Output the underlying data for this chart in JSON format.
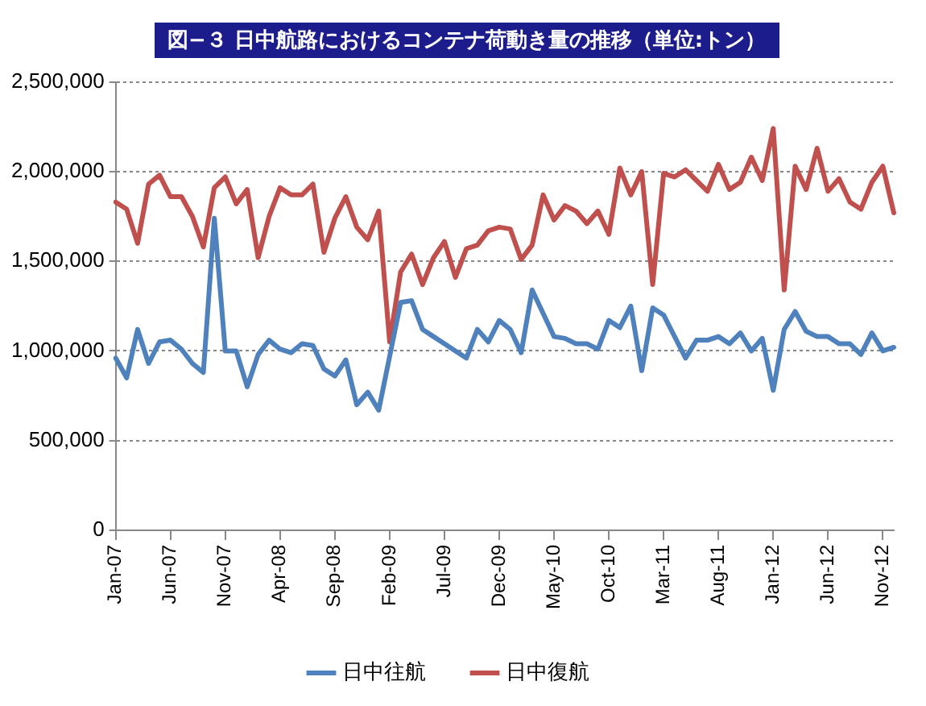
{
  "chart_data": {
    "type": "line",
    "title": "図−３ 日中航路におけるコンテナ荷動き量の推移（単位:トン）",
    "categories": [
      "Jan-07",
      null,
      null,
      null,
      null,
      "Jun-07",
      null,
      null,
      null,
      null,
      "Nov-07",
      null,
      null,
      null,
      null,
      "Apr-08",
      null,
      null,
      null,
      null,
      "Sep-08",
      null,
      null,
      null,
      null,
      "Feb-09",
      null,
      null,
      null,
      null,
      "Jul-09",
      null,
      null,
      null,
      null,
      "Dec-09",
      null,
      null,
      null,
      null,
      "May-10",
      null,
      null,
      null,
      null,
      "Oct-10",
      null,
      null,
      null,
      null,
      "Mar-11",
      null,
      null,
      null,
      null,
      "Aug-11",
      null,
      null,
      null,
      null,
      "Jan-12",
      null,
      null,
      null,
      null,
      "Jun-12",
      null,
      null,
      null,
      null,
      "Nov-12",
      null
    ],
    "series": [
      {
        "name": "日中往航",
        "color": "#4f81bd",
        "values": [
          960000,
          850000,
          1120000,
          930000,
          1050000,
          1060000,
          1010000,
          930000,
          880000,
          1740000,
          1000000,
          1000000,
          800000,
          980000,
          1060000,
          1010000,
          990000,
          1040000,
          1030000,
          900000,
          860000,
          950000,
          700000,
          770000,
          670000,
          970000,
          1270000,
          1280000,
          1120000,
          1080000,
          1040000,
          1000000,
          960000,
          1120000,
          1050000,
          1170000,
          1120000,
          990000,
          1340000,
          1210000,
          1080000,
          1070000,
          1040000,
          1040000,
          1010000,
          1170000,
          1130000,
          1250000,
          890000,
          1240000,
          1200000,
          1080000,
          960000,
          1060000,
          1060000,
          1080000,
          1040000,
          1100000,
          1000000,
          1070000,
          780000,
          1120000,
          1220000,
          1110000,
          1080000,
          1080000,
          1040000,
          1040000,
          980000,
          1100000,
          1000000,
          1020000
        ]
      },
      {
        "name": "日中復航",
        "color": "#c0504d",
        "values": [
          1830000,
          1790000,
          1600000,
          1930000,
          1980000,
          1860000,
          1860000,
          1750000,
          1580000,
          1910000,
          1970000,
          1820000,
          1900000,
          1520000,
          1750000,
          1910000,
          1870000,
          1870000,
          1930000,
          1550000,
          1740000,
          1860000,
          1690000,
          1620000,
          1780000,
          1050000,
          1440000,
          1540000,
          1370000,
          1520000,
          1610000,
          1410000,
          1570000,
          1590000,
          1670000,
          1690000,
          1680000,
          1510000,
          1590000,
          1870000,
          1730000,
          1810000,
          1780000,
          1710000,
          1780000,
          1650000,
          2020000,
          1870000,
          2000000,
          1370000,
          1990000,
          1970000,
          2010000,
          1950000,
          1890000,
          2040000,
          1900000,
          1940000,
          2080000,
          1950000,
          2240000,
          1340000,
          2030000,
          1900000,
          2130000,
          1890000,
          1960000,
          1830000,
          1790000,
          1940000,
          2030000,
          1770000
        ]
      }
    ],
    "ylim": [
      0,
      2500000
    ],
    "yticks": [
      {
        "value": 0,
        "label": "0"
      },
      {
        "value": 500000,
        "label": "500,000"
      },
      {
        "value": 1000000,
        "label": "1,000,000"
      },
      {
        "value": 1500000,
        "label": "1,500,000"
      },
      {
        "value": 2000000,
        "label": "2,000,000"
      },
      {
        "value": 2500000,
        "label": "2,500,000"
      }
    ],
    "grid": "y",
    "legend": "bottom",
    "marker": "none",
    "line_style": "solid"
  }
}
